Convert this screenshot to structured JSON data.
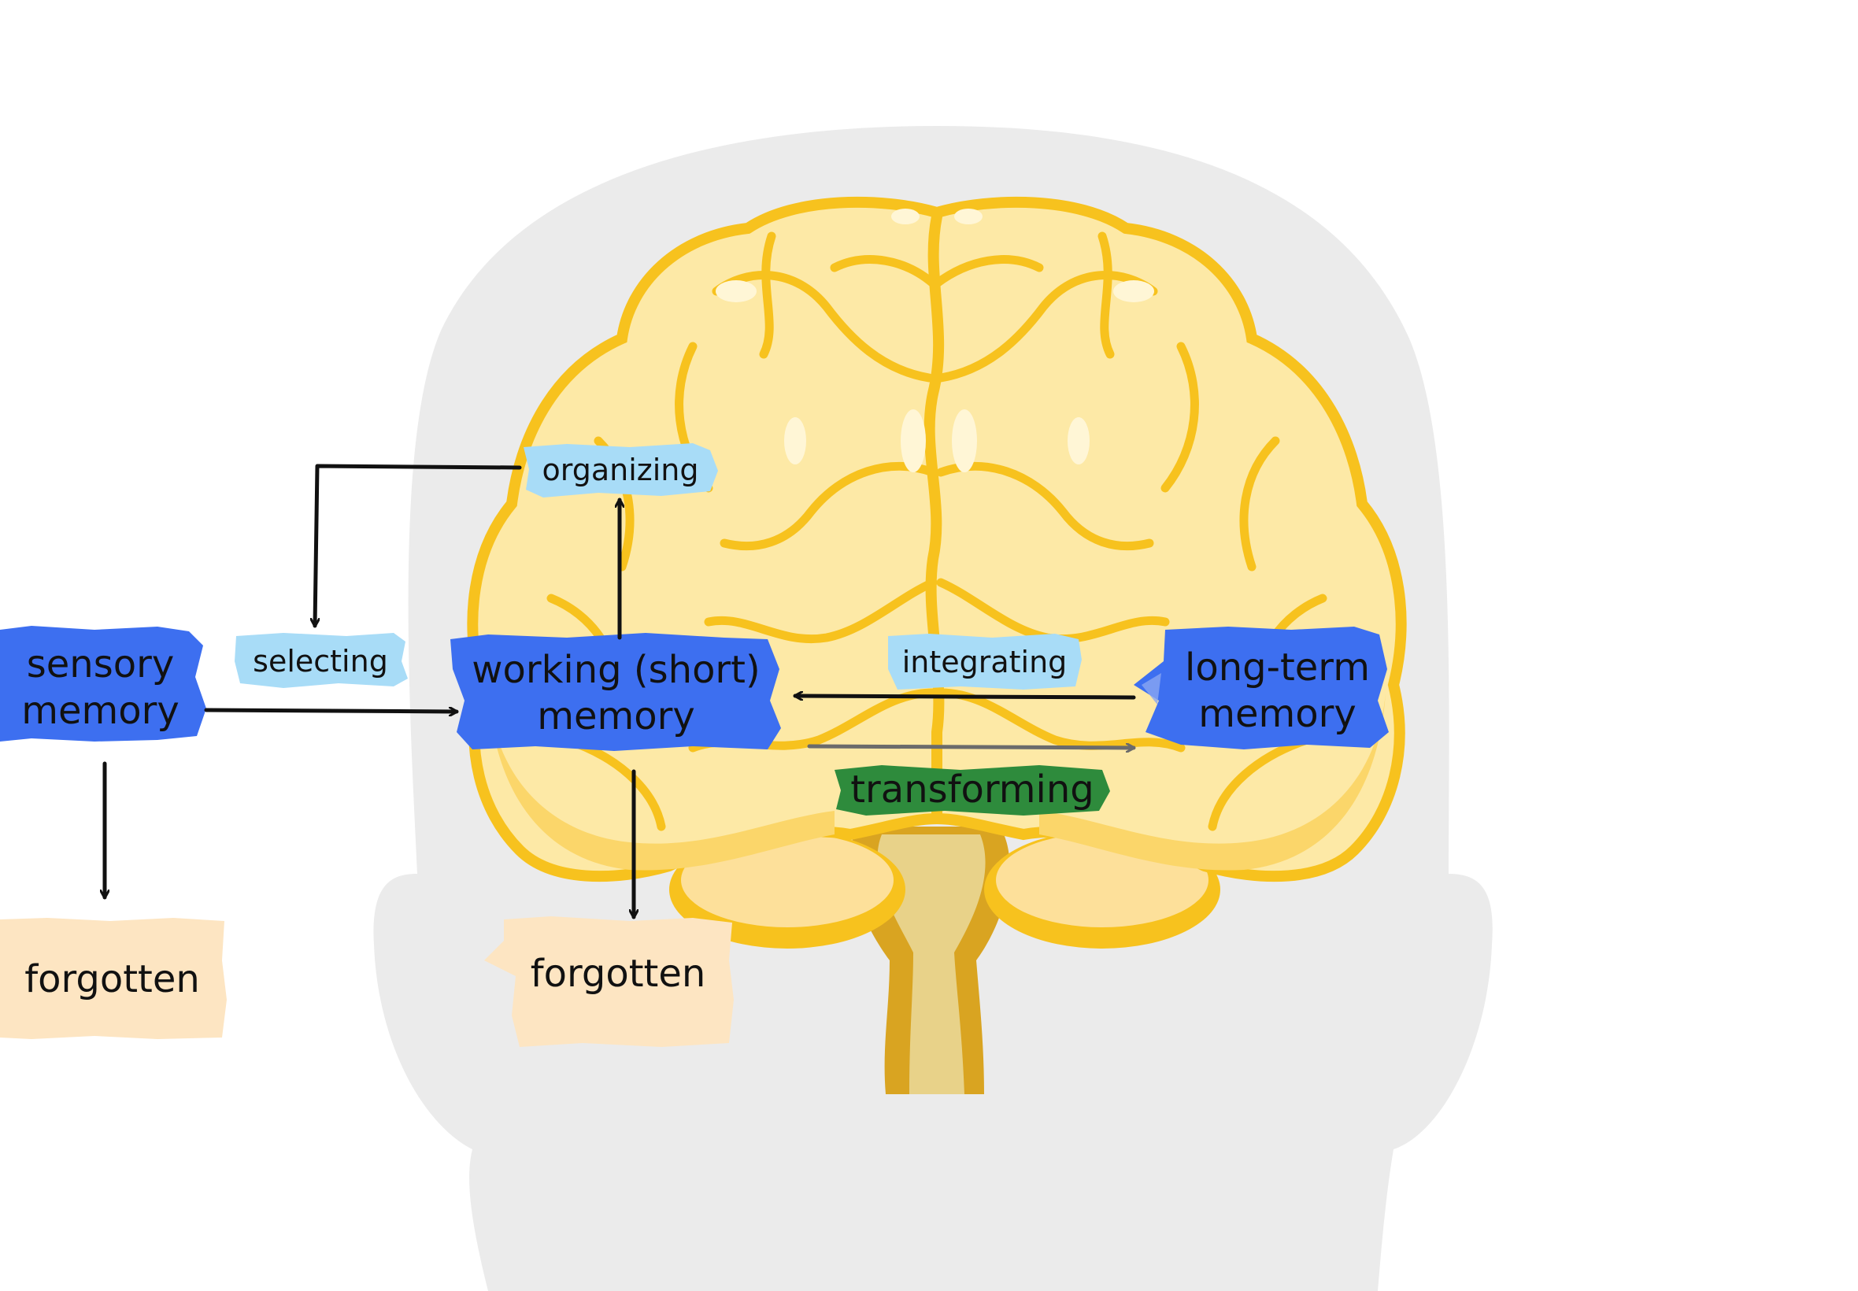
{
  "labels": {
    "sensory_memory": [
      "sensory",
      "memory"
    ],
    "working_memory": [
      "working (short)",
      "memory"
    ],
    "long_term_memory": [
      "long-term",
      "memory"
    ],
    "selecting": "selecting",
    "organizing": "organizing",
    "integrating": "integrating",
    "transforming": "transforming",
    "forgotten_left": "forgotten",
    "forgotten_center": "forgotten"
  },
  "colors": {
    "memory_box": "#3d6ff0",
    "process_tag": "#a8dcf7",
    "transforming_tag": "#2e8b3c",
    "forgotten_box": "#fde5c2",
    "head_silhouette": "#ebebeb",
    "brain_fill": "#fde9a6",
    "brain_outline": "#f7c21e",
    "brainstem": "#d9a421",
    "arrow_main": "#111111",
    "arrow_transform": "#6b6b6b"
  },
  "icons": [
    "head-silhouette",
    "brain-illustration"
  ]
}
